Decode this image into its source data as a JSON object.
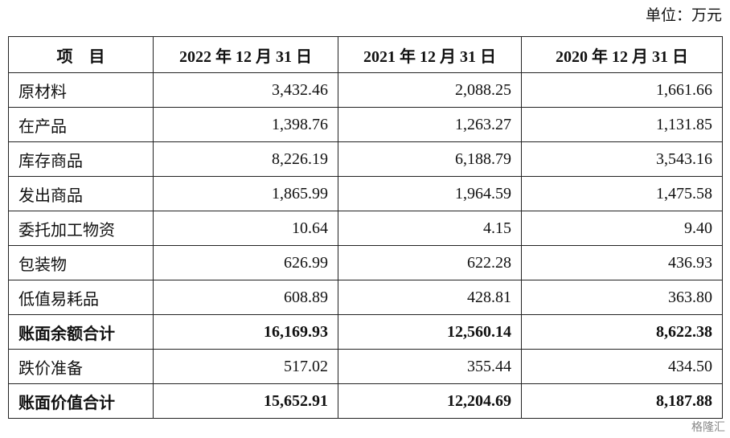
{
  "header": {
    "unit": "单位：万元"
  },
  "table": {
    "columns": [
      "项　目",
      "2022 年 12 月 31 日",
      "2021 年 12 月 31 日",
      "2020 年 12 月 31 日"
    ],
    "rows": [
      {
        "label": "原材料",
        "values": [
          "3,432.46",
          "2,088.25",
          "1,661.66"
        ],
        "bold": false
      },
      {
        "label": "在产品",
        "values": [
          "1,398.76",
          "1,263.27",
          "1,131.85"
        ],
        "bold": false
      },
      {
        "label": "库存商品",
        "values": [
          "8,226.19",
          "6,188.79",
          "3,543.16"
        ],
        "bold": false
      },
      {
        "label": "发出商品",
        "values": [
          "1,865.99",
          "1,964.59",
          "1,475.58"
        ],
        "bold": false
      },
      {
        "label": "委托加工物资",
        "values": [
          "10.64",
          "4.15",
          "9.40"
        ],
        "bold": false
      },
      {
        "label": "包装物",
        "values": [
          "626.99",
          "622.28",
          "436.93"
        ],
        "bold": false
      },
      {
        "label": "低值易耗品",
        "values": [
          "608.89",
          "428.81",
          "363.80"
        ],
        "bold": false
      },
      {
        "label": "账面余额合计",
        "values": [
          "16,169.93",
          "12,560.14",
          "8,622.38"
        ],
        "bold": true
      },
      {
        "label": "跌价准备",
        "values": [
          "517.02",
          "355.44",
          "434.50"
        ],
        "bold": false
      },
      {
        "label": "账面价值合计",
        "values": [
          "15,652.91",
          "12,204.69",
          "8,187.88"
        ],
        "bold": true
      }
    ]
  },
  "watermark": "格隆汇"
}
